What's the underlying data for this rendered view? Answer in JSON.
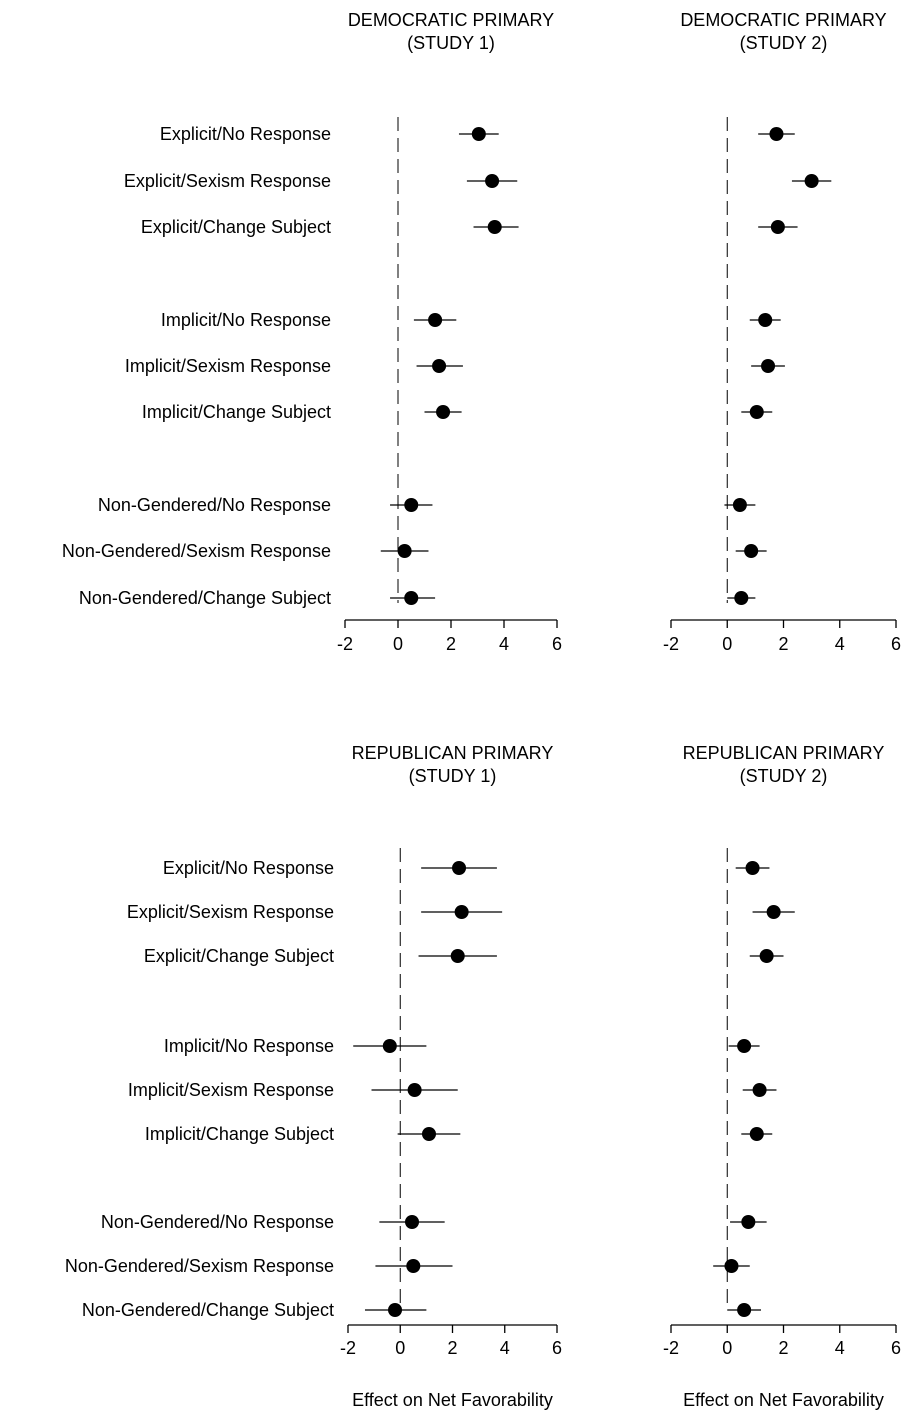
{
  "chart_data": [
    {
      "type": "scatter",
      "title": [
        "DEMOCRATIC PRIMARY",
        "(STUDY 1)"
      ],
      "xlabel": "",
      "xlim": [
        -2,
        6
      ],
      "xticks": [
        "-2",
        "0",
        "2",
        "4",
        "6"
      ],
      "reference_line_x": 0,
      "categories": [
        "Explicit/No Response",
        "Explicit/Sexism Response",
        "Explicit/Change Subject",
        "Implicit/No Response",
        "Implicit/Sexism Response",
        "Implicit/Change Subject",
        "Non-Gendered/No Response",
        "Non-Gendered/Sexism Response",
        "Non-Gendered/Change Subject"
      ],
      "estimates": [
        3.05,
        3.55,
        3.65,
        1.4,
        1.55,
        1.7,
        0.5,
        0.25,
        0.5
      ],
      "ci_low": [
        2.3,
        2.6,
        2.85,
        0.6,
        0.7,
        1.0,
        -0.3,
        -0.65,
        -0.3
      ],
      "ci_high": [
        3.8,
        4.5,
        4.55,
        2.2,
        2.45,
        2.4,
        1.3,
        1.15,
        1.4
      ]
    },
    {
      "type": "scatter",
      "title": [
        "DEMOCRATIC PRIMARY",
        "(STUDY 2)"
      ],
      "xlabel": "",
      "xlim": [
        -2,
        6
      ],
      "xticks": [
        "-2",
        "0",
        "2",
        "4",
        "6"
      ],
      "reference_line_x": 0,
      "categories": [
        "Explicit/No Response",
        "Explicit/Sexism Response",
        "Explicit/Change Subject",
        "Implicit/No Response",
        "Implicit/Sexism Response",
        "Implicit/Change Subject",
        "Non-Gendered/No Response",
        "Non-Gendered/Sexism Response",
        "Non-Gendered/Change Subject"
      ],
      "estimates": [
        1.75,
        3.0,
        1.8,
        1.35,
        1.45,
        1.05,
        0.45,
        0.85,
        0.5
      ],
      "ci_low": [
        1.1,
        2.3,
        1.1,
        0.8,
        0.85,
        0.5,
        -0.1,
        0.3,
        0.0
      ],
      "ci_high": [
        2.4,
        3.7,
        2.5,
        1.9,
        2.05,
        1.6,
        1.0,
        1.4,
        1.0
      ]
    },
    {
      "type": "scatter",
      "title": [
        "REPUBLICAN PRIMARY",
        "(STUDY 1)"
      ],
      "xlabel": "Effect on Net Favorability",
      "xlim": [
        -2,
        6
      ],
      "xticks": [
        "-2",
        "0",
        "2",
        "4",
        "6"
      ],
      "reference_line_x": 0,
      "categories": [
        "Explicit/No Response",
        "Explicit/Sexism Response",
        "Explicit/Change Subject",
        "Implicit/No Response",
        "Implicit/Sexism Response",
        "Implicit/Change Subject",
        "Non-Gendered/No Response",
        "Non-Gendered/Sexism Response",
        "Non-Gendered/Change Subject"
      ],
      "estimates": [
        2.25,
        2.35,
        2.2,
        -0.4,
        0.55,
        1.1,
        0.45,
        0.5,
        -0.2
      ],
      "ci_low": [
        0.8,
        0.8,
        0.7,
        -1.8,
        -1.1,
        -0.1,
        -0.8,
        -0.95,
        -1.35
      ],
      "ci_high": [
        3.7,
        3.9,
        3.7,
        1.0,
        2.2,
        2.3,
        1.7,
        2.0,
        1.0
      ]
    },
    {
      "type": "scatter",
      "title": [
        "REPUBLICAN PRIMARY",
        "(STUDY 2)"
      ],
      "xlabel": "Effect on Net Favorability",
      "xlim": [
        -2,
        6
      ],
      "xticks": [
        "-2",
        "0",
        "2",
        "4",
        "6"
      ],
      "reference_line_x": 0,
      "categories": [
        "Explicit/No Response",
        "Explicit/Sexism Response",
        "Explicit/Change Subject",
        "Implicit/No Response",
        "Implicit/Sexism Response",
        "Implicit/Change Subject",
        "Non-Gendered/No Response",
        "Non-Gendered/Sexism Response",
        "Non-Gendered/Change Subject"
      ],
      "estimates": [
        0.9,
        1.65,
        1.4,
        0.6,
        1.15,
        1.05,
        0.75,
        0.15,
        0.6
      ],
      "ci_low": [
        0.3,
        0.9,
        0.8,
        0.05,
        0.55,
        0.5,
        0.1,
        -0.5,
        0.0
      ],
      "ci_high": [
        1.5,
        2.4,
        2.0,
        1.15,
        1.75,
        1.6,
        1.4,
        0.8,
        1.2
      ]
    }
  ]
}
